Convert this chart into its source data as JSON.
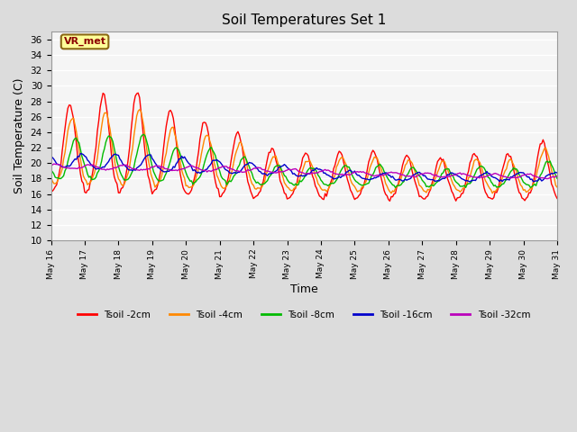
{
  "title": "Soil Temperatures Set 1",
  "xlabel": "Time",
  "ylabel": "Soil Temperature (C)",
  "ylim": [
    10,
    37
  ],
  "yticks": [
    10,
    12,
    14,
    16,
    18,
    20,
    22,
    24,
    26,
    28,
    30,
    32,
    34,
    36
  ],
  "background_color": "#dcdcdc",
  "plot_bg_color": "#f5f5f5",
  "station_label": "VR_met",
  "legend_entries": [
    "Tsoil -2cm",
    "Tsoil -4cm",
    "Tsoil -8cm",
    "Tsoil -16cm",
    "Tsoil -32cm"
  ],
  "line_colors": [
    "#ff0000",
    "#ff8800",
    "#00bb00",
    "#0000cc",
    "#bb00bb"
  ],
  "figsize": [
    6.4,
    4.8
  ],
  "dpi": 100
}
